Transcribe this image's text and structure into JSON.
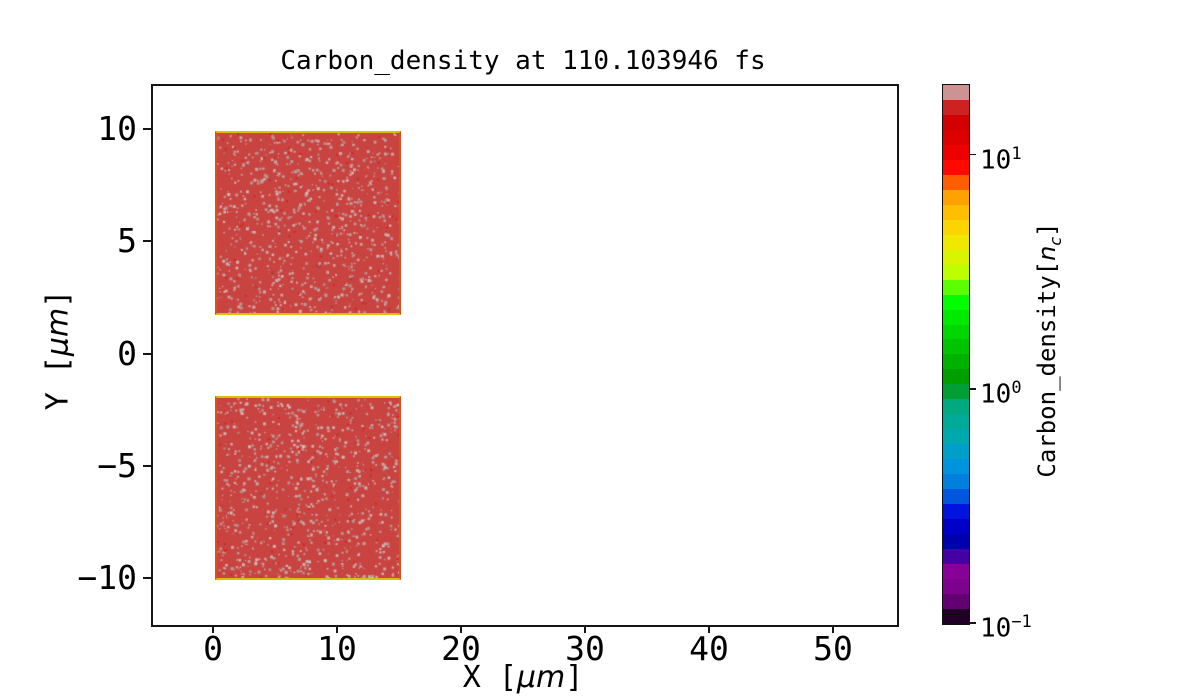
{
  "figure": {
    "background_color": "#ffffff",
    "text_color": "#000000"
  },
  "chart_data": {
    "type": "heatmap",
    "title": "Carbon_density at 110.103946 fs",
    "time_fs": 110.103946,
    "xlabel": {
      "prefix": "X [",
      "unit": "μm",
      "suffix": "]"
    },
    "ylabel": {
      "prefix": "Y [",
      "unit": "μm",
      "suffix": "]"
    },
    "xlim": [
      -5,
      55
    ],
    "ylim": [
      -12,
      12
    ],
    "grid": false,
    "x_ticks": [
      {
        "value": 0,
        "label": "0"
      },
      {
        "value": 10,
        "label": "10"
      },
      {
        "value": 20,
        "label": "20"
      },
      {
        "value": 30,
        "label": "30"
      },
      {
        "value": 40,
        "label": "40"
      },
      {
        "value": 50,
        "label": "50"
      }
    ],
    "y_ticks": [
      {
        "value": 10,
        "label": "10"
      },
      {
        "value": 5,
        "label": "5"
      },
      {
        "value": 0,
        "label": "0"
      },
      {
        "value": -5,
        "label": "−5"
      },
      {
        "value": -10,
        "label": "−10"
      }
    ],
    "regions": [
      {
        "key": "upper",
        "label": "upper carbon slab",
        "x_range_um": [
          0,
          15
        ],
        "y_range_um": [
          1.8,
          10
        ],
        "fill_color": "#c94340",
        "edge_color_top_bottom": "#d9c100",
        "edge_color_sides": "#dd4f1f",
        "approx_density_nc": 12
      },
      {
        "key": "lower",
        "label": "lower carbon slab",
        "x_range_um": [
          0,
          15
        ],
        "y_range_um": [
          -10,
          -1.8
        ],
        "fill_color": "#c94340",
        "edge_color_top_bottom": "#d9c100",
        "edge_color_sides": "#dd4f1f",
        "approx_density_nc": 12
      }
    ],
    "speckle_colors": [
      "#c6a8a6",
      "#bd9a98",
      "#d0b6b4",
      "#b7918f",
      "#cbb0ae"
    ],
    "speckle_hot_color": "#e3150f",
    "speckle_dark_color": "#a83432",
    "colorbar": {
      "label": {
        "prefix": "Carbon_density[",
        "var": "n",
        "sub": "c",
        "suffix": "]"
      },
      "scale": "log",
      "vmin": 0.1,
      "vmax": 20,
      "ticks": [
        {
          "value": 10,
          "base": "10",
          "exp": "1"
        },
        {
          "value": 1,
          "base": "10",
          "exp": "0"
        },
        {
          "value": 0.1,
          "base": "10",
          "exp": "−1"
        }
      ],
      "colormap_name": "nipy_spectral (discretized)",
      "segment_colors_top_to_bottom": [
        "#cc9393",
        "#cc2222",
        "#d30000",
        "#dc0000",
        "#ee0000",
        "#ff0900",
        "#ff5d00",
        "#ffa200",
        "#ffbe00",
        "#fad500",
        "#f1e800",
        "#daf400",
        "#bdfe00",
        "#5dff00",
        "#00fd00",
        "#00ea00",
        "#00d700",
        "#00c400",
        "#00b200",
        "#009f00",
        "#009f35",
        "#00a980",
        "#00aa99",
        "#00a9ad",
        "#009fc9",
        "#0093dd",
        "#0080dd",
        "#0056dd",
        "#0014dd",
        "#0000c9",
        "#0000ad",
        "#4400a2",
        "#870098",
        "#7e008f",
        "#630071",
        "#210026"
      ]
    }
  }
}
